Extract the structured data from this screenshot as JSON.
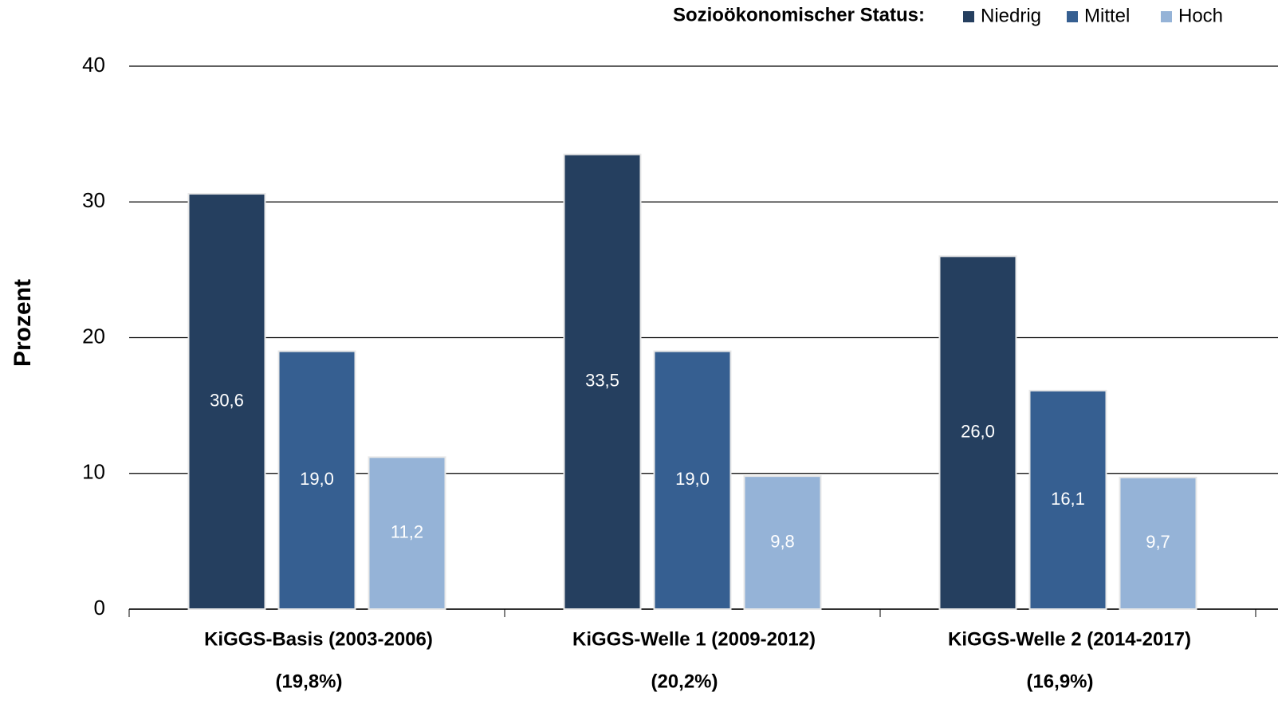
{
  "chart_data": {
    "type": "bar",
    "y_label": "Prozent",
    "legend_title": "Sozioökonomischer Status:",
    "categories": [
      "KiGGS-Basis (2003-2006)",
      "KiGGS-Welle 1 (2009-2012)",
      "KiGGS-Welle 2 (2014-2017)"
    ],
    "category_notes": [
      "(19,8%)",
      "(20,2%)",
      "(16,9%)"
    ],
    "series": [
      {
        "name": "Niedrig",
        "color": "#253f5f",
        "values": [
          30.6,
          33.5,
          26.0
        ],
        "value_labels": [
          "30,6",
          "33,5",
          "26,0"
        ]
      },
      {
        "name": "Mittel",
        "color": "#365f91",
        "values": [
          19.0,
          19.0,
          16.1
        ],
        "value_labels": [
          "19,0",
          "19,0",
          "16,1"
        ]
      },
      {
        "name": "Hoch",
        "color": "#95b3d7",
        "values": [
          11.2,
          9.8,
          9.7
        ],
        "value_labels": [
          "11,2",
          "9,8",
          "9,7"
        ]
      }
    ],
    "ylim": [
      0,
      40
    ],
    "yticks": [
      0,
      10,
      20,
      30,
      40
    ],
    "grid": true,
    "legend_position": "top-right"
  }
}
